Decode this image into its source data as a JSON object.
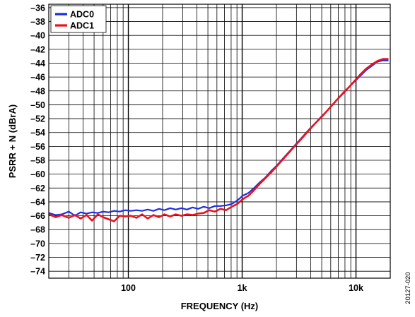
{
  "chart_data": {
    "type": "line",
    "title": "",
    "xlabel": "FREQUENCY (Hz)",
    "ylabel": "PSRR + N (dBrA)",
    "x_scale": "log",
    "xlim": [
      20,
      20000
    ],
    "ylim": [
      -75,
      -35.5
    ],
    "x_tick_values": [
      100,
      1000,
      10000
    ],
    "x_tick_labels": [
      "100",
      "1k",
      "10k"
    ],
    "y_tick_values": [
      -36,
      -38,
      -40,
      -42,
      -44,
      -46,
      -48,
      -50,
      -52,
      -54,
      -56,
      -58,
      -60,
      -62,
      -64,
      -66,
      -68,
      -70,
      -72,
      -74
    ],
    "y_tick_labels": [
      "–36",
      "–38",
      "–40",
      "–42",
      "–44",
      "–46",
      "–48",
      "–50",
      "–52",
      "–54",
      "–56",
      "–58",
      "–60",
      "–62",
      "–64",
      "–66",
      "–68",
      "–70",
      "–72",
      "–74"
    ],
    "grid": "major and minor (log decades), y every 2",
    "legend_position": "top-left",
    "series": [
      {
        "name": "ADC0",
        "color": "#1f2fe0",
        "x": [
          20,
          23,
          26,
          30,
          34,
          38,
          43,
          48,
          54,
          60,
          67,
          75,
          84,
          94,
          105,
          118,
          132,
          148,
          166,
          186,
          208,
          233,
          261,
          292,
          327,
          366,
          410,
          459,
          514,
          576,
          645,
          722,
          809,
          906,
          1014,
          1136,
          1272,
          1425,
          1596,
          1787,
          2002,
          2242,
          2511,
          2812,
          3150,
          3528,
          3951,
          4425,
          4956,
          5551,
          6217,
          6963,
          7799,
          8735,
          9783,
          10957,
          12272,
          13745,
          15394,
          17241,
          19310
        ],
        "y": [
          -65.6,
          -65.9,
          -65.8,
          -65.4,
          -66.0,
          -65.5,
          -65.7,
          -65.5,
          -65.6,
          -65.4,
          -65.5,
          -65.3,
          -65.4,
          -65.2,
          -65.3,
          -65.2,
          -65.3,
          -65.1,
          -65.3,
          -65.0,
          -65.2,
          -64.9,
          -65.1,
          -64.9,
          -65.1,
          -64.8,
          -65.0,
          -64.7,
          -64.9,
          -64.6,
          -64.6,
          -64.5,
          -64.3,
          -63.8,
          -63.1,
          -62.7,
          -62.0,
          -61.2,
          -60.5,
          -59.6,
          -58.8,
          -57.9,
          -57.0,
          -56.1,
          -55.2,
          -54.3,
          -53.4,
          -52.6,
          -51.7,
          -50.9,
          -50.0,
          -49.1,
          -48.3,
          -47.4,
          -46.6,
          -45.8,
          -45.0,
          -44.4,
          -43.8,
          -43.6,
          -43.6
        ]
      },
      {
        "name": "ADC1",
        "color": "#e8141c",
        "x": [
          20,
          23,
          26,
          30,
          34,
          38,
          43,
          48,
          54,
          60,
          67,
          75,
          84,
          94,
          105,
          118,
          132,
          148,
          166,
          186,
          208,
          233,
          261,
          292,
          327,
          366,
          410,
          459,
          514,
          576,
          645,
          722,
          809,
          906,
          1014,
          1136,
          1272,
          1425,
          1596,
          1787,
          2002,
          2242,
          2511,
          2812,
          3150,
          3528,
          3951,
          4425,
          4956,
          5551,
          6217,
          6963,
          7799,
          8735,
          9783,
          10957,
          12272,
          13745,
          15394,
          17241,
          19310
        ],
        "y": [
          -65.8,
          -66.2,
          -65.9,
          -66.3,
          -65.9,
          -66.4,
          -65.9,
          -66.7,
          -65.8,
          -66.2,
          -66.5,
          -66.8,
          -66.0,
          -66.1,
          -66.0,
          -66.3,
          -65.8,
          -66.4,
          -65.9,
          -66.2,
          -65.8,
          -66.1,
          -65.8,
          -66.0,
          -65.8,
          -65.9,
          -65.7,
          -65.6,
          -65.2,
          -65.4,
          -65.0,
          -65.2,
          -64.7,
          -64.3,
          -63.6,
          -63.1,
          -62.3,
          -61.4,
          -60.6,
          -59.8,
          -58.9,
          -58.0,
          -57.1,
          -56.2,
          -55.3,
          -54.4,
          -53.5,
          -52.6,
          -51.8,
          -50.9,
          -50.0,
          -49.1,
          -48.2,
          -47.4,
          -46.5,
          -45.6,
          -44.8,
          -44.2,
          -43.7,
          -43.4,
          -43.4
        ]
      }
    ]
  },
  "figure_id": "20127-020"
}
